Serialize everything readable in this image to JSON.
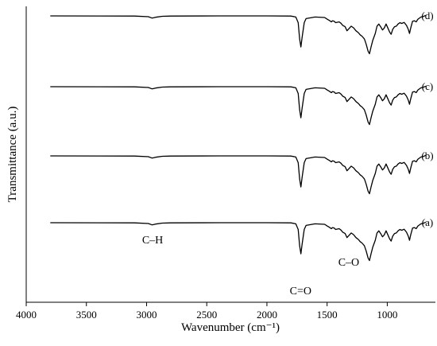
{
  "chart_data": {
    "type": "line",
    "xlabel": "Wavenumber (cm⁻¹)",
    "ylabel": "Transmittance (a.u.)",
    "xlim": [
      4000,
      600
    ],
    "x_ticks": [
      4000,
      3500,
      3000,
      2500,
      2000,
      1500,
      1000
    ],
    "x_reversed": true,
    "y_ticks_shown": false,
    "grid": false,
    "series": [
      {
        "name": "(d)",
        "points": [
          [
            3800,
            0
          ],
          [
            3100,
            -0.5
          ],
          [
            2985,
            -3
          ],
          [
            2955,
            -8
          ],
          [
            2925,
            -5
          ],
          [
            2870,
            -1.5
          ],
          [
            2800,
            -0.5
          ],
          [
            2400,
            0
          ],
          [
            2000,
            0
          ],
          [
            1800,
            -0.5
          ],
          [
            1760,
            -4
          ],
          [
            1740,
            -25
          ],
          [
            1728,
            -85
          ],
          [
            1718,
            -115
          ],
          [
            1708,
            -80
          ],
          [
            1690,
            -25
          ],
          [
            1675,
            -10
          ],
          [
            1600,
            -4
          ],
          [
            1520,
            -6
          ],
          [
            1500,
            -12
          ],
          [
            1480,
            -17
          ],
          [
            1465,
            -22
          ],
          [
            1455,
            -18
          ],
          [
            1440,
            -20
          ],
          [
            1430,
            -25
          ],
          [
            1400,
            -22
          ],
          [
            1385,
            -27
          ],
          [
            1370,
            -35
          ],
          [
            1350,
            -40
          ],
          [
            1335,
            -55
          ],
          [
            1320,
            -48
          ],
          [
            1300,
            -38
          ],
          [
            1280,
            -44
          ],
          [
            1260,
            -55
          ],
          [
            1240,
            -62
          ],
          [
            1225,
            -70
          ],
          [
            1210,
            -75
          ],
          [
            1190,
            -85
          ],
          [
            1175,
            -105
          ],
          [
            1160,
            -130
          ],
          [
            1148,
            -140
          ],
          [
            1135,
            -115
          ],
          [
            1120,
            -90
          ],
          [
            1100,
            -65
          ],
          [
            1085,
            -38
          ],
          [
            1070,
            -30
          ],
          [
            1055,
            -40
          ],
          [
            1040,
            -52
          ],
          [
            1025,
            -45
          ],
          [
            1010,
            -30
          ],
          [
            995,
            -45
          ],
          [
            980,
            -60
          ],
          [
            968,
            -68
          ],
          [
            955,
            -50
          ],
          [
            940,
            -40
          ],
          [
            925,
            -38
          ],
          [
            910,
            -30
          ],
          [
            895,
            -25
          ],
          [
            880,
            -28
          ],
          [
            860,
            -24
          ],
          [
            840,
            -35
          ],
          [
            825,
            -50
          ],
          [
            815,
            -65
          ],
          [
            805,
            -45
          ],
          [
            790,
            -20
          ],
          [
            775,
            -18
          ],
          [
            760,
            -22
          ],
          [
            745,
            -12
          ],
          [
            720,
            -4
          ],
          [
            700,
            -2
          ],
          [
            680,
            2
          ]
        ]
      },
      {
        "name": "(c)",
        "points": [
          [
            3800,
            0
          ],
          [
            3100,
            -0.5
          ],
          [
            2985,
            -3
          ],
          [
            2955,
            -8
          ],
          [
            2925,
            -5
          ],
          [
            2870,
            -1.5
          ],
          [
            2800,
            -0.5
          ],
          [
            2400,
            0
          ],
          [
            2000,
            0
          ],
          [
            1800,
            -0.5
          ],
          [
            1760,
            -4
          ],
          [
            1740,
            -25
          ],
          [
            1728,
            -85
          ],
          [
            1718,
            -115
          ],
          [
            1708,
            -80
          ],
          [
            1690,
            -25
          ],
          [
            1675,
            -10
          ],
          [
            1600,
            -4
          ],
          [
            1520,
            -6
          ],
          [
            1500,
            -12
          ],
          [
            1480,
            -17
          ],
          [
            1465,
            -22
          ],
          [
            1455,
            -18
          ],
          [
            1440,
            -20
          ],
          [
            1430,
            -25
          ],
          [
            1400,
            -22
          ],
          [
            1385,
            -27
          ],
          [
            1370,
            -35
          ],
          [
            1350,
            -40
          ],
          [
            1335,
            -55
          ],
          [
            1320,
            -48
          ],
          [
            1300,
            -38
          ],
          [
            1280,
            -44
          ],
          [
            1260,
            -55
          ],
          [
            1240,
            -62
          ],
          [
            1225,
            -70
          ],
          [
            1210,
            -75
          ],
          [
            1190,
            -85
          ],
          [
            1175,
            -105
          ],
          [
            1160,
            -130
          ],
          [
            1148,
            -140
          ],
          [
            1135,
            -115
          ],
          [
            1120,
            -90
          ],
          [
            1100,
            -65
          ],
          [
            1085,
            -38
          ],
          [
            1070,
            -30
          ],
          [
            1055,
            -40
          ],
          [
            1040,
            -52
          ],
          [
            1025,
            -45
          ],
          [
            1010,
            -30
          ],
          [
            995,
            -45
          ],
          [
            980,
            -60
          ],
          [
            968,
            -68
          ],
          [
            955,
            -50
          ],
          [
            940,
            -40
          ],
          [
            925,
            -38
          ],
          [
            910,
            -30
          ],
          [
            895,
            -25
          ],
          [
            880,
            -28
          ],
          [
            860,
            -24
          ],
          [
            840,
            -35
          ],
          [
            825,
            -50
          ],
          [
            815,
            -65
          ],
          [
            805,
            -45
          ],
          [
            790,
            -20
          ],
          [
            775,
            -18
          ],
          [
            760,
            -22
          ],
          [
            745,
            -12
          ],
          [
            720,
            -4
          ],
          [
            700,
            -2
          ],
          [
            680,
            2
          ]
        ]
      },
      {
        "name": "(b)",
        "points": [
          [
            3800,
            0
          ],
          [
            3100,
            -0.5
          ],
          [
            2985,
            -3
          ],
          [
            2955,
            -8
          ],
          [
            2925,
            -5
          ],
          [
            2870,
            -1.5
          ],
          [
            2800,
            -0.5
          ],
          [
            2400,
            0
          ],
          [
            2000,
            0
          ],
          [
            1800,
            -0.5
          ],
          [
            1760,
            -4
          ],
          [
            1740,
            -25
          ],
          [
            1728,
            -85
          ],
          [
            1718,
            -115
          ],
          [
            1708,
            -80
          ],
          [
            1690,
            -25
          ],
          [
            1675,
            -10
          ],
          [
            1600,
            -4
          ],
          [
            1520,
            -6
          ],
          [
            1500,
            -12
          ],
          [
            1480,
            -17
          ],
          [
            1465,
            -22
          ],
          [
            1455,
            -18
          ],
          [
            1440,
            -20
          ],
          [
            1430,
            -25
          ],
          [
            1400,
            -22
          ],
          [
            1385,
            -27
          ],
          [
            1370,
            -35
          ],
          [
            1350,
            -40
          ],
          [
            1335,
            -55
          ],
          [
            1320,
            -48
          ],
          [
            1300,
            -38
          ],
          [
            1280,
            -44
          ],
          [
            1260,
            -55
          ],
          [
            1240,
            -62
          ],
          [
            1225,
            -70
          ],
          [
            1210,
            -75
          ],
          [
            1190,
            -85
          ],
          [
            1175,
            -105
          ],
          [
            1160,
            -130
          ],
          [
            1148,
            -140
          ],
          [
            1135,
            -115
          ],
          [
            1120,
            -90
          ],
          [
            1100,
            -65
          ],
          [
            1085,
            -38
          ],
          [
            1070,
            -30
          ],
          [
            1055,
            -40
          ],
          [
            1040,
            -52
          ],
          [
            1025,
            -45
          ],
          [
            1010,
            -30
          ],
          [
            995,
            -45
          ],
          [
            980,
            -60
          ],
          [
            968,
            -68
          ],
          [
            955,
            -50
          ],
          [
            940,
            -40
          ],
          [
            925,
            -38
          ],
          [
            910,
            -30
          ],
          [
            895,
            -25
          ],
          [
            880,
            -28
          ],
          [
            860,
            -24
          ],
          [
            840,
            -35
          ],
          [
            825,
            -50
          ],
          [
            815,
            -65
          ],
          [
            805,
            -45
          ],
          [
            790,
            -20
          ],
          [
            775,
            -18
          ],
          [
            760,
            -22
          ],
          [
            745,
            -12
          ],
          [
            720,
            -4
          ],
          [
            700,
            -2
          ],
          [
            680,
            2
          ]
        ]
      },
      {
        "name": "(a)",
        "points": [
          [
            3800,
            0
          ],
          [
            3100,
            -0.5
          ],
          [
            2985,
            -3
          ],
          [
            2955,
            -8
          ],
          [
            2925,
            -5
          ],
          [
            2870,
            -1.5
          ],
          [
            2800,
            -0.5
          ],
          [
            2400,
            0
          ],
          [
            2000,
            0
          ],
          [
            1800,
            -0.5
          ],
          [
            1760,
            -4
          ],
          [
            1740,
            -25
          ],
          [
            1728,
            -85
          ],
          [
            1718,
            -115
          ],
          [
            1708,
            -80
          ],
          [
            1690,
            -25
          ],
          [
            1675,
            -10
          ],
          [
            1600,
            -4
          ],
          [
            1520,
            -6
          ],
          [
            1500,
            -12
          ],
          [
            1480,
            -17
          ],
          [
            1465,
            -22
          ],
          [
            1455,
            -18
          ],
          [
            1440,
            -20
          ],
          [
            1430,
            -25
          ],
          [
            1400,
            -22
          ],
          [
            1385,
            -27
          ],
          [
            1370,
            -35
          ],
          [
            1350,
            -40
          ],
          [
            1335,
            -55
          ],
          [
            1320,
            -48
          ],
          [
            1300,
            -38
          ],
          [
            1280,
            -44
          ],
          [
            1260,
            -55
          ],
          [
            1240,
            -62
          ],
          [
            1225,
            -70
          ],
          [
            1210,
            -75
          ],
          [
            1190,
            -85
          ],
          [
            1175,
            -105
          ],
          [
            1160,
            -130
          ],
          [
            1148,
            -140
          ],
          [
            1135,
            -115
          ],
          [
            1120,
            -90
          ],
          [
            1100,
            -65
          ],
          [
            1085,
            -38
          ],
          [
            1070,
            -30
          ],
          [
            1055,
            -40
          ],
          [
            1040,
            -52
          ],
          [
            1025,
            -45
          ],
          [
            1010,
            -30
          ],
          [
            995,
            -45
          ],
          [
            980,
            -60
          ],
          [
            968,
            -68
          ],
          [
            955,
            -50
          ],
          [
            940,
            -40
          ],
          [
            925,
            -38
          ],
          [
            910,
            -30
          ],
          [
            895,
            -25
          ],
          [
            880,
            -28
          ],
          [
            860,
            -24
          ],
          [
            840,
            -35
          ],
          [
            825,
            -50
          ],
          [
            815,
            -65
          ],
          [
            805,
            -45
          ],
          [
            790,
            -20
          ],
          [
            775,
            -18
          ],
          [
            760,
            -22
          ],
          [
            745,
            -12
          ],
          [
            720,
            -4
          ],
          [
            700,
            -2
          ],
          [
            680,
            2
          ]
        ]
      }
    ],
    "annotations": [
      {
        "text": "C–H",
        "x": 2950
      },
      {
        "text": "C=O",
        "x": 1720
      },
      {
        "text": "C–O",
        "x": 1320
      }
    ]
  }
}
